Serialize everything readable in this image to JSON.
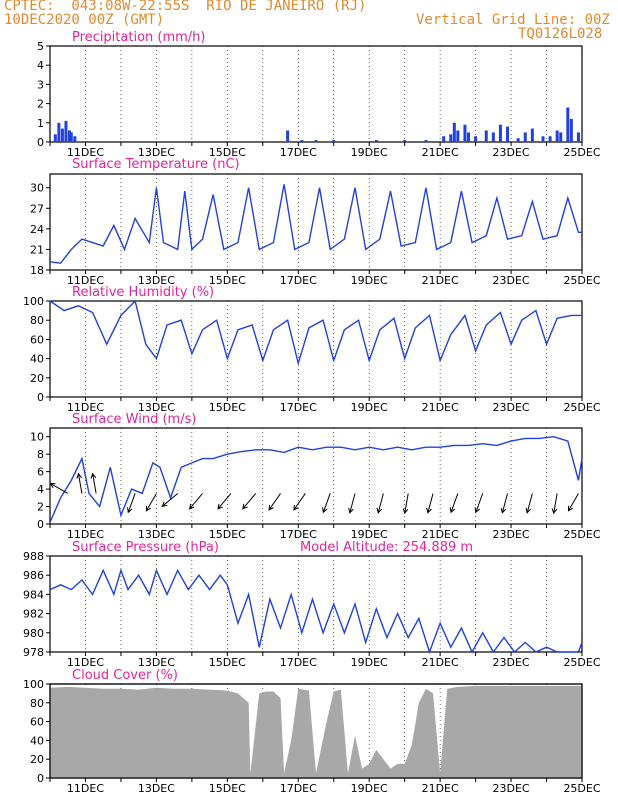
{
  "header": {
    "line1": "CPTEC:  043:08W-22:55S  RIO DE JANEIRO (RJ)",
    "line2": "10DEC2020 00Z (GMT)",
    "grid_note": "Vertical Grid Line: 00Z",
    "code": "TQ0126L028"
  },
  "colors": {
    "header": "#e08a30",
    "title": "#e0249a",
    "series": "#2040e0",
    "cloud": "#a8a8a8",
    "axis": "#000000"
  },
  "x_tick_labels": [
    "11DEC",
    "13DEC",
    "15DEC",
    "17DEC",
    "19DEC",
    "21DEC",
    "23DEC",
    "25DEC"
  ],
  "chart_data": [
    {
      "type": "bar",
      "title": "Precipitation (mm/h)",
      "ylim": [
        0,
        5
      ],
      "yticks": [
        "0",
        "1",
        "2",
        "3",
        "4",
        "5"
      ],
      "x_day_range": [
        10,
        25
      ],
      "x": [
        10.15,
        10.25,
        10.35,
        10.45,
        10.55,
        10.6,
        10.7,
        16.7,
        17.1,
        17.5,
        18.0,
        19.2,
        20.0,
        20.6,
        21.1,
        21.3,
        21.4,
        21.5,
        21.7,
        21.8,
        22.0,
        22.3,
        22.5,
        22.7,
        22.9,
        23.2,
        23.4,
        23.6,
        23.9,
        24.1,
        24.3,
        24.4,
        24.6,
        24.7,
        24.9
      ],
      "values": [
        0.4,
        1.0,
        0.7,
        1.1,
        0.6,
        0.5,
        0.3,
        0.6,
        0.1,
        0.1,
        0.1,
        0.1,
        0.1,
        0.1,
        0.3,
        0.4,
        1.0,
        0.6,
        0.9,
        0.5,
        0.3,
        0.6,
        0.5,
        0.9,
        0.8,
        0.2,
        0.5,
        0.7,
        0.3,
        0.3,
        0.6,
        0.5,
        1.8,
        1.2,
        0.5
      ]
    },
    {
      "type": "line",
      "title": "Surface Temperature (nC)",
      "ylim": [
        18,
        32
      ],
      "yticks": [
        "18",
        "21",
        "24",
        "27",
        "30"
      ],
      "x": [
        10.0,
        10.3,
        10.6,
        10.9,
        11.2,
        11.5,
        11.8,
        12.1,
        12.4,
        12.8,
        13.0,
        13.2,
        13.6,
        13.8,
        14.0,
        14.3,
        14.6,
        14.9,
        15.3,
        15.6,
        15.9,
        16.3,
        16.6,
        16.9,
        17.3,
        17.6,
        17.9,
        18.3,
        18.6,
        18.9,
        19.3,
        19.6,
        19.9,
        20.3,
        20.6,
        20.9,
        21.3,
        21.6,
        21.9,
        22.3,
        22.6,
        22.9,
        23.3,
        23.6,
        23.9,
        24.3,
        24.6,
        24.9,
        25.0
      ],
      "values": [
        19.2,
        19.0,
        21.0,
        22.5,
        22.0,
        21.5,
        24.5,
        21.0,
        25.5,
        22.0,
        30.0,
        22.0,
        21.0,
        29.5,
        21.0,
        22.5,
        29.0,
        21.0,
        22.0,
        30.0,
        21.0,
        22.0,
        30.5,
        21.0,
        22.0,
        30.0,
        21.0,
        22.5,
        30.0,
        21.0,
        22.5,
        29.5,
        21.5,
        22.0,
        30.0,
        21.0,
        22.0,
        29.5,
        22.0,
        23.0,
        28.5,
        22.5,
        23.0,
        28.0,
        22.5,
        23.0,
        28.5,
        23.5,
        23.5
      ]
    },
    {
      "type": "line",
      "title": "Relative Humidity (%)",
      "ylim": [
        0,
        100
      ],
      "yticks": [
        "0",
        "20",
        "40",
        "60",
        "80",
        "100"
      ],
      "x": [
        10.0,
        10.4,
        10.8,
        11.2,
        11.6,
        12.0,
        12.4,
        12.7,
        13.0,
        13.3,
        13.7,
        14.0,
        14.3,
        14.7,
        15.0,
        15.3,
        15.7,
        16.0,
        16.3,
        16.7,
        17.0,
        17.3,
        17.7,
        18.0,
        18.3,
        18.7,
        19.0,
        19.3,
        19.7,
        20.0,
        20.3,
        20.7,
        21.0,
        21.3,
        21.7,
        22.0,
        22.3,
        22.7,
        23.0,
        23.3,
        23.7,
        24.0,
        24.3,
        24.7,
        25.0
      ],
      "values": [
        100,
        90,
        95,
        88,
        55,
        85,
        100,
        55,
        40,
        75,
        80,
        45,
        70,
        80,
        40,
        70,
        75,
        38,
        70,
        80,
        35,
        72,
        80,
        38,
        70,
        80,
        38,
        70,
        82,
        40,
        72,
        85,
        38,
        65,
        85,
        48,
        75,
        88,
        55,
        80,
        90,
        55,
        82,
        85,
        85
      ]
    },
    {
      "type": "line",
      "title": "Surface Wind (m/s)",
      "ylim": [
        0,
        11
      ],
      "yticks": [
        "0",
        "2",
        "4",
        "6",
        "8",
        "10"
      ],
      "x": [
        10.0,
        10.3,
        10.6,
        10.9,
        11.1,
        11.4,
        11.7,
        12.0,
        12.3,
        12.6,
        12.9,
        13.1,
        13.4,
        13.7,
        14.0,
        14.3,
        14.6,
        15.0,
        15.4,
        15.8,
        16.2,
        16.6,
        17.0,
        17.4,
        17.8,
        18.2,
        18.6,
        19.0,
        19.4,
        19.8,
        20.2,
        20.6,
        21.0,
        21.4,
        21.8,
        22.2,
        22.6,
        23.0,
        23.4,
        23.8,
        24.2,
        24.6,
        24.9,
        25.0
      ],
      "values": [
        0.2,
        3.0,
        5.0,
        7.5,
        3.5,
        2.0,
        6.5,
        1.0,
        4.0,
        3.5,
        7.0,
        6.5,
        3.0,
        6.5,
        7.0,
        7.5,
        7.5,
        8.0,
        8.3,
        8.5,
        8.5,
        8.2,
        8.8,
        8.5,
        8.8,
        8.8,
        8.5,
        8.8,
        8.5,
        8.8,
        8.5,
        8.8,
        8.8,
        9.0,
        9.0,
        9.2,
        9.0,
        9.5,
        9.8,
        9.8,
        10.0,
        9.5,
        5.0,
        7.5
      ],
      "arrows_x": [
        10.5,
        10.9,
        11.3,
        12.4,
        13.0,
        13.6,
        14.3,
        15.1,
        15.8,
        16.5,
        17.2,
        17.9,
        18.6,
        19.4,
        20.1,
        20.8,
        21.5,
        22.2,
        22.9,
        23.6,
        24.3,
        24.9
      ],
      "arrows_dir_deg": [
        300,
        350,
        350,
        200,
        210,
        230,
        220,
        220,
        220,
        215,
        215,
        200,
        195,
        195,
        190,
        195,
        200,
        200,
        195,
        195,
        190,
        210
      ]
    },
    {
      "type": "line",
      "title": "Surface Pressure (hPa)",
      "annotation": "Model Altitude: 254.889 m",
      "ylim": [
        978,
        988
      ],
      "yticks": [
        "978",
        "980",
        "982",
        "984",
        "986",
        "988"
      ],
      "x": [
        10.0,
        10.3,
        10.6,
        10.9,
        11.2,
        11.5,
        11.8,
        12.0,
        12.2,
        12.5,
        12.8,
        13.0,
        13.3,
        13.6,
        13.9,
        14.2,
        14.5,
        14.8,
        15.0,
        15.3,
        15.6,
        15.9,
        16.2,
        16.5,
        16.8,
        17.1,
        17.4,
        17.7,
        18.0,
        18.3,
        18.6,
        18.9,
        19.2,
        19.5,
        19.8,
        20.1,
        20.4,
        20.7,
        21.0,
        21.3,
        21.6,
        21.9,
        22.2,
        22.5,
        22.8,
        23.1,
        23.4,
        23.7,
        24.0,
        24.3,
        24.6,
        24.9,
        25.0
      ],
      "values": [
        984.5,
        985.0,
        984.5,
        985.5,
        984.0,
        986.5,
        984.0,
        986.5,
        984.5,
        986.0,
        984.0,
        986.5,
        984.0,
        986.5,
        984.5,
        986.0,
        984.5,
        986.0,
        985.0,
        981.0,
        984.0,
        978.5,
        983.5,
        980.5,
        984.0,
        980.0,
        983.5,
        980.0,
        983.0,
        980.0,
        983.0,
        979.0,
        982.5,
        979.5,
        982.0,
        979.5,
        981.5,
        978.0,
        981.0,
        978.5,
        980.5,
        978.0,
        980.0,
        978.0,
        979.5,
        978.0,
        979.0,
        978.0,
        978.5,
        978.0,
        978.0,
        978.0,
        979.0
      ]
    },
    {
      "type": "area",
      "title": "Cloud Cover (%)",
      "ylim": [
        0,
        100
      ],
      "yticks": [
        "0",
        "20",
        "40",
        "60",
        "80",
        "100"
      ],
      "x": [
        10.0,
        10.5,
        11.0,
        11.5,
        12.0,
        12.5,
        13.0,
        13.5,
        14.0,
        14.5,
        15.0,
        15.3,
        15.6,
        15.65,
        15.9,
        16.1,
        16.3,
        16.5,
        16.6,
        16.8,
        17.0,
        17.3,
        17.5,
        17.8,
        18.0,
        18.2,
        18.4,
        18.6,
        18.8,
        19.0,
        19.2,
        19.4,
        19.6,
        19.8,
        20.0,
        20.2,
        20.4,
        20.6,
        20.8,
        21.0,
        21.2,
        21.5,
        22.0,
        22.5,
        23.0,
        23.5,
        24.0,
        24.5,
        25.0
      ],
      "values": [
        96,
        97,
        96,
        95,
        95,
        94,
        96,
        95,
        95,
        94,
        93,
        90,
        80,
        5,
        90,
        92,
        92,
        85,
        5,
        40,
        95,
        93,
        5,
        60,
        92,
        94,
        5,
        45,
        10,
        15,
        30,
        20,
        10,
        15,
        15,
        35,
        80,
        95,
        90,
        5,
        95,
        97,
        98,
        98,
        98,
        98,
        98,
        98,
        98
      ]
    }
  ]
}
